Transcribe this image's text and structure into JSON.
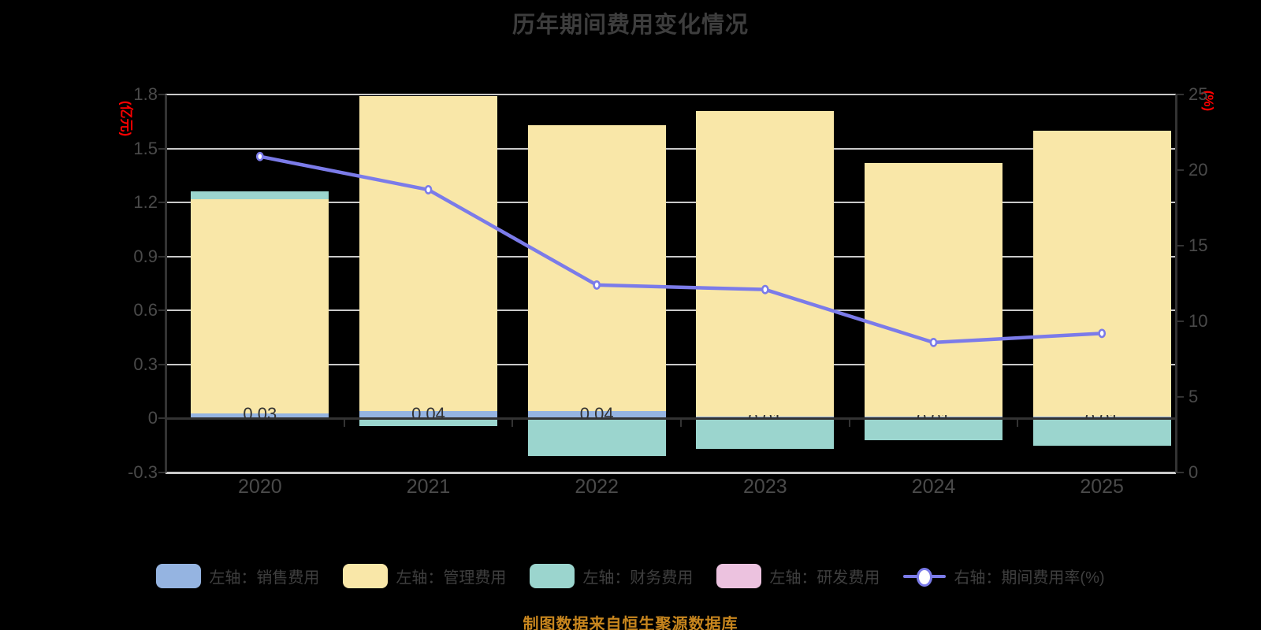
{
  "title": "历年期间费用变化情况",
  "footer": "制图数据来自恒生聚源数据库",
  "colors": {
    "background": "#000000",
    "grid": "#c9c9c9",
    "axis_line": "#333333",
    "axis_text": "#4a4a4a",
    "axis_name": "#ff0000",
    "bar_label": "#333333",
    "legend_text": "#3f3f3f",
    "footer_text": "#c8861e"
  },
  "chart_data": {
    "type": "bar",
    "title": "历年期间费用变化情况",
    "categories": [
      "2020",
      "2021",
      "2022",
      "2023",
      "2024",
      "2025"
    ],
    "series": [
      {
        "key": "sales",
        "name": "左轴：销售费用",
        "kind": "bar",
        "color": "#95b4e1",
        "values": [
          0.03,
          0.04,
          0.04,
          0.01,
          0.01,
          0.01
        ],
        "labels": [
          "0.03",
          "0.04",
          "0.04",
          "0.01",
          "0.01",
          "0.01"
        ],
        "labels_clipped": true
      },
      {
        "key": "admin",
        "name": "左轴：管理费用",
        "kind": "bar",
        "color": "#f9e7a8",
        "values": [
          1.19,
          1.75,
          1.59,
          1.7,
          1.41,
          1.59
        ]
      },
      {
        "key": "finance",
        "name": "左轴：财务费用",
        "kind": "bar",
        "color": "#9bd5ce",
        "values": [
          0.04,
          -0.04,
          -0.21,
          -0.17,
          -0.12,
          -0.15
        ]
      },
      {
        "key": "rnd",
        "name": "左轴：研发费用",
        "kind": "bar",
        "color": "#ecc2df",
        "values": [
          0,
          0,
          0,
          0,
          0,
          0
        ]
      },
      {
        "key": "ratio",
        "name": "右轴：期间费用率(%)",
        "kind": "line",
        "color": "#7b7be9",
        "values": [
          20.9,
          18.7,
          12.4,
          12.1,
          8.6,
          9.2
        ]
      }
    ],
    "left_axis": {
      "name": "(亿元)",
      "min": -0.3,
      "max": 1.8,
      "tick_labels": [
        "1.8",
        "1.5",
        "1.2",
        "0.9",
        "0.6",
        "0.3",
        "0",
        "-0.3"
      ]
    },
    "right_axis": {
      "name": "(%)",
      "min": 0,
      "max": 25,
      "tick_labels": [
        "25",
        "20",
        "15",
        "10",
        "5",
        "0"
      ]
    },
    "grid": true,
    "legend_position": "bottom"
  },
  "legend": {
    "items": [
      {
        "key": "sales",
        "label": "左轴：销售费用",
        "swatch": "bar",
        "color": "#95b4e1"
      },
      {
        "key": "admin",
        "label": "左轴：管理费用",
        "swatch": "bar",
        "color": "#f9e7a8"
      },
      {
        "key": "finance",
        "label": "左轴：财务费用",
        "swatch": "bar",
        "color": "#9bd5ce"
      },
      {
        "key": "rnd",
        "label": "左轴：研发费用",
        "swatch": "bar",
        "color": "#ecc2df"
      },
      {
        "key": "ratio",
        "label": "右轴：期间费用率(%)",
        "swatch": "line",
        "color": "#7b7be9"
      }
    ]
  }
}
